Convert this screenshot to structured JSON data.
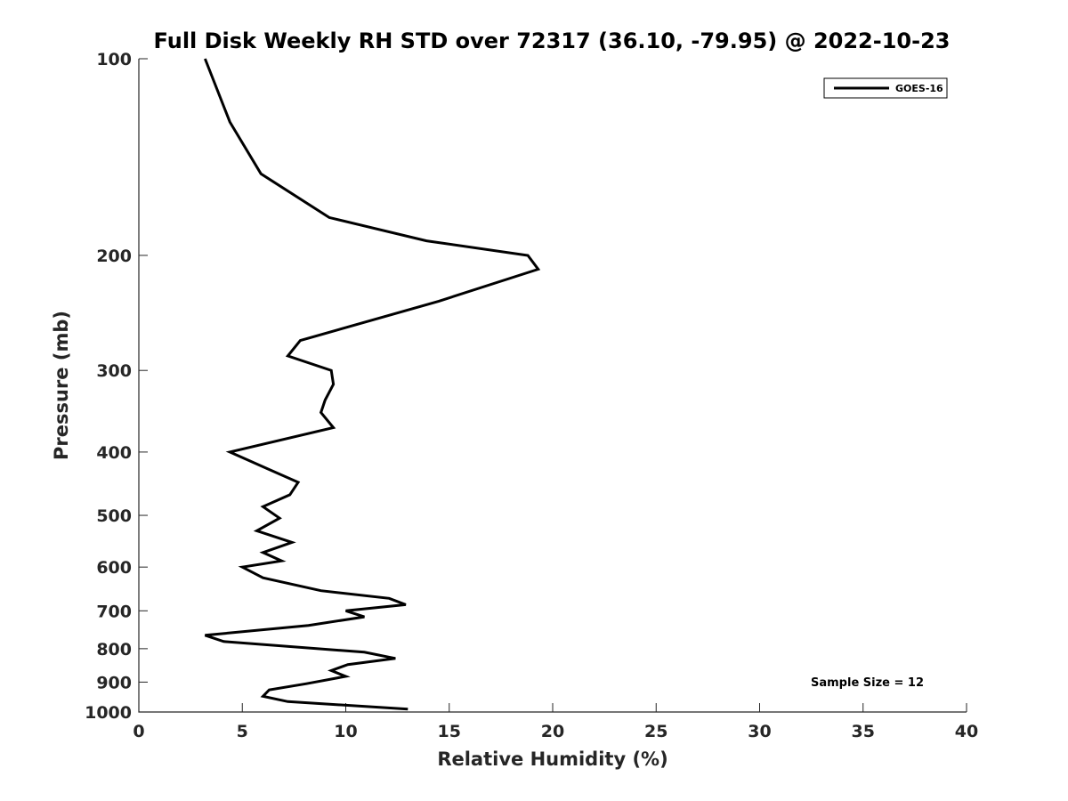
{
  "chart_data": {
    "type": "line",
    "title": "Full Disk Weekly RH STD over 72317 (36.10, -79.95) @ 2022-10-23",
    "xlabel": "Relative Humidity (%)",
    "ylabel": "Pressure (mb)",
    "xlim": [
      0,
      40
    ],
    "ylim": [
      100,
      1000
    ],
    "y_scale": "log",
    "y_reversed": true,
    "x_ticks": [
      0,
      5,
      10,
      15,
      20,
      25,
      30,
      35,
      40
    ],
    "y_ticks": [
      100,
      200,
      300,
      400,
      500,
      600,
      700,
      800,
      900,
      1000
    ],
    "grid": false,
    "legend_position": "top-right",
    "annotation": "Sample Size = 12",
    "series": [
      {
        "name": "GOES-16",
        "color": "#000000",
        "points": [
          [
            3.2,
            100
          ],
          [
            4.4,
            125
          ],
          [
            5.9,
            150
          ],
          [
            9.2,
            175
          ],
          [
            13.9,
            190
          ],
          [
            18.8,
            200
          ],
          [
            19.3,
            210
          ],
          [
            14.5,
            235
          ],
          [
            7.8,
            270
          ],
          [
            7.2,
            285
          ],
          [
            9.3,
            300
          ],
          [
            9.4,
            315
          ],
          [
            9.0,
            333
          ],
          [
            8.8,
            348
          ],
          [
            9.4,
            367
          ],
          [
            4.4,
            400
          ],
          [
            6.2,
            424
          ],
          [
            7.7,
            445
          ],
          [
            7.3,
            465
          ],
          [
            6.0,
            485
          ],
          [
            6.8,
            505
          ],
          [
            5.7,
            528
          ],
          [
            7.4,
            550
          ],
          [
            6.0,
            570
          ],
          [
            6.9,
            587
          ],
          [
            5.0,
            600
          ],
          [
            6.0,
            623
          ],
          [
            8.8,
            652
          ],
          [
            12.1,
            670
          ],
          [
            12.9,
            685
          ],
          [
            10.0,
            700
          ],
          [
            10.9,
            715
          ],
          [
            8.2,
            737
          ],
          [
            3.2,
            763
          ],
          [
            4.1,
            780
          ],
          [
            10.9,
            810
          ],
          [
            12.4,
            828
          ],
          [
            10.1,
            846
          ],
          [
            9.3,
            864
          ],
          [
            10.0,
            882
          ],
          [
            8.1,
            905
          ],
          [
            6.3,
            925
          ],
          [
            6.0,
            946
          ],
          [
            7.2,
            964
          ],
          [
            13.0,
            990
          ]
        ]
      }
    ]
  }
}
